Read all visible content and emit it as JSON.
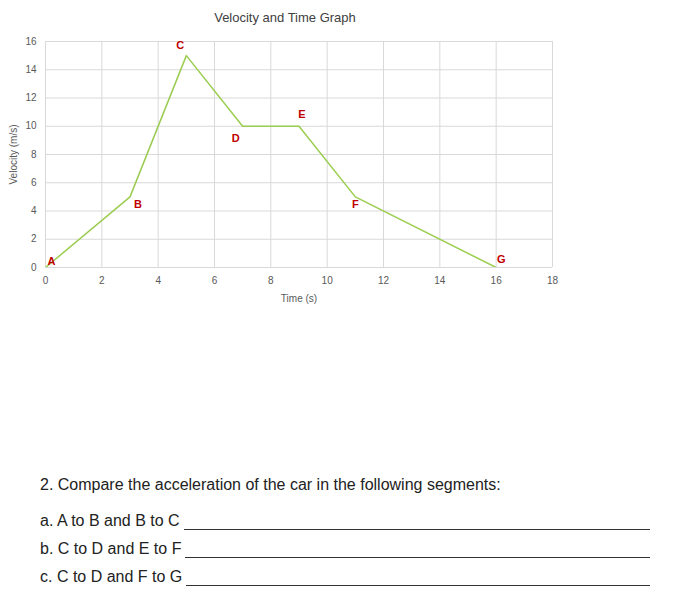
{
  "chart_data": {
    "type": "line",
    "title": "Velocity and Time Graph",
    "x_label": "Time (s)",
    "y_label": "Velocity (m/s)",
    "x": [
      0,
      3,
      5,
      7,
      9,
      11,
      16
    ],
    "values": [
      0,
      5,
      15,
      10,
      10,
      5,
      0
    ],
    "point_labels": [
      "A",
      "B",
      "C",
      "D",
      "E",
      "F",
      "G"
    ],
    "color": "#9acd50",
    "xlim": [
      0,
      18
    ],
    "xticks": [
      0,
      2,
      4,
      6,
      8,
      10,
      12,
      14,
      16,
      18
    ],
    "ylim": [
      0,
      16
    ],
    "yticks": [
      0,
      2,
      4,
      6,
      8,
      10,
      12,
      14,
      16
    ],
    "grid": true
  },
  "question": {
    "title": "2. Compare the acceleration of the car in the following segments:",
    "items": [
      "a. A to B and B to C",
      "b. C to D and E to F",
      "c. C to D and F to G"
    ]
  }
}
